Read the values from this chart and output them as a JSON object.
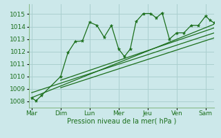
{
  "background_color": "#cce8ea",
  "grid_color": "#aacfcf",
  "line_color": "#1a6e1a",
  "xlabel": "Pression niveau de la mer( hPa )",
  "xlabels": [
    "Mar",
    "Dim",
    "Lun",
    "Mer",
    "Jeu",
    "Ven",
    "Sam"
  ],
  "ylim": [
    1007.5,
    1015.8
  ],
  "yticks": [
    1008,
    1009,
    1010,
    1011,
    1012,
    1013,
    1014,
    1015
  ],
  "xlim": [
    -0.1,
    6.3
  ],
  "xticks": [
    0,
    1,
    2,
    3,
    4,
    5,
    6
  ],
  "series_jagged_x": [
    0.0,
    0.15,
    0.35,
    1.0,
    1.25,
    1.5,
    1.75,
    2.0,
    2.25,
    2.5,
    2.75,
    3.0,
    3.2,
    3.4,
    3.6,
    3.85,
    4.1,
    4.3,
    4.5,
    4.75,
    5.0,
    5.25,
    5.5,
    5.75,
    6.0,
    6.15,
    6.3
  ],
  "series_jagged_y": [
    1008.3,
    1008.05,
    1008.5,
    1010.0,
    1011.9,
    1012.8,
    1012.85,
    1014.35,
    1014.1,
    1013.15,
    1014.1,
    1012.2,
    1011.6,
    1012.2,
    1014.4,
    1015.05,
    1015.05,
    1014.7,
    1015.1,
    1013.0,
    1013.5,
    1013.5,
    1014.1,
    1014.1,
    1014.85,
    1014.5,
    1014.3
  ],
  "trend_lines": [
    {
      "x": [
        0.0,
        6.3
      ],
      "y": [
        1008.3,
        1014.2
      ]
    },
    {
      "x": [
        0.0,
        6.3
      ],
      "y": [
        1008.7,
        1013.5
      ]
    },
    {
      "x": [
        1.0,
        6.3
      ],
      "y": [
        1009.7,
        1013.9
      ]
    },
    {
      "x": [
        1.0,
        6.3
      ],
      "y": [
        1009.1,
        1013.1
      ]
    }
  ],
  "marker_size": 3.5
}
